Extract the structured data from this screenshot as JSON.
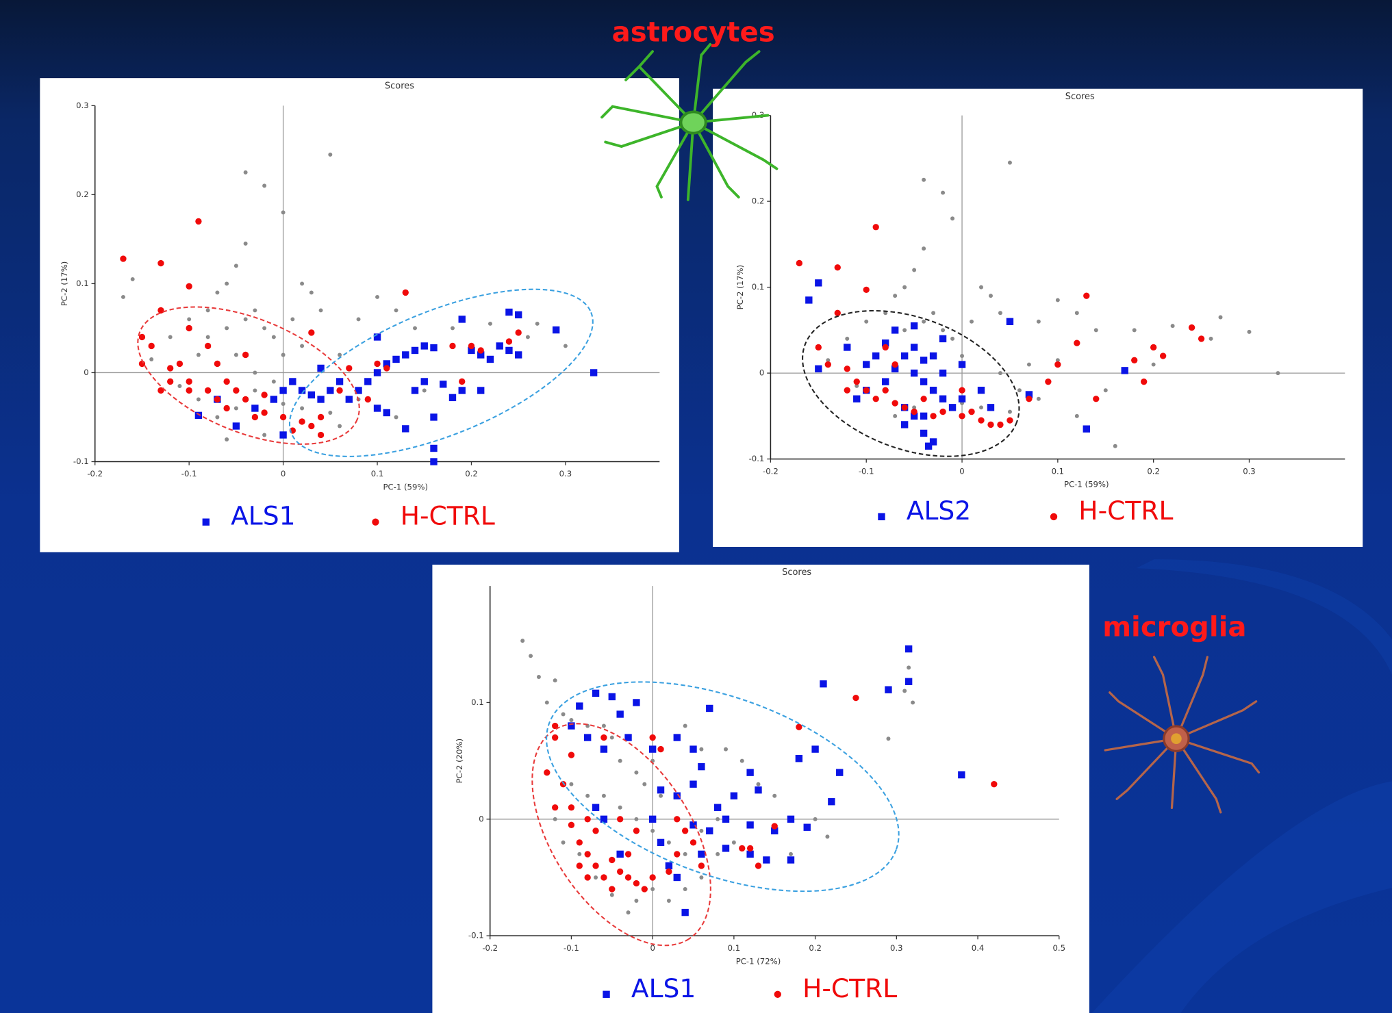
{
  "cell_labels": [
    "astrocytes",
    "microglia"
  ],
  "chart_data": [
    {
      "type": "scatter",
      "title": "Scores",
      "xlabel": "PC-1 (59%)",
      "ylabel": "PC-2 (17%)",
      "xlim": [
        -0.2,
        0.4
      ],
      "ylim": [
        -0.1,
        0.3
      ],
      "xticks": [
        -0.2,
        -0.1,
        0,
        0.1,
        0.2,
        0.3
      ],
      "yticks": [
        -0.1,
        0,
        0.1,
        0.2,
        0.3
      ],
      "series": [
        {
          "color": "#8a8a8a",
          "marker": "dot",
          "x": [
            -0.17,
            -0.16,
            -0.04,
            -0.02,
            0.0,
            0.05,
            -0.04,
            -0.05,
            -0.06,
            -0.07,
            -0.08,
            -0.1,
            -0.12,
            -0.09,
            -0.08,
            -0.06,
            -0.04,
            -0.03,
            -0.02,
            -0.01,
            0.0,
            0.02,
            0.03,
            0.01,
            0.02,
            0.04,
            0.08,
            0.1,
            0.12,
            0.14,
            0.18,
            0.22,
            0.26,
            0.27,
            0.3,
            -0.14,
            -0.11,
            -0.09,
            -0.07,
            -0.05,
            -0.03,
            -0.01,
            0.0,
            0.02,
            0.05,
            -0.06,
            -0.02,
            0.06,
            0.12,
            0.08,
            0.15,
            -0.05,
            -0.03,
            0.06
          ],
          "values": [
            0.085,
            0.105,
            0.225,
            0.21,
            0.18,
            0.245,
            0.145,
            0.12,
            0.1,
            0.09,
            0.07,
            0.06,
            0.04,
            0.02,
            0.04,
            0.05,
            0.06,
            0.07,
            0.05,
            0.04,
            0.02,
            0.1,
            0.09,
            0.06,
            0.03,
            0.07,
            0.06,
            0.085,
            0.07,
            0.05,
            0.05,
            0.055,
            0.04,
            0.055,
            0.03,
            0.015,
            -0.015,
            -0.03,
            -0.05,
            -0.04,
            -0.02,
            -0.01,
            -0.035,
            -0.04,
            -0.045,
            -0.075,
            -0.07,
            -0.06,
            -0.05,
            -0.03,
            -0.02,
            0.02,
            0.0,
            0.02
          ]
        },
        {
          "name": "ALS1",
          "color": "#0a14e6",
          "marker": "square",
          "x": [
            0.33,
            0.29,
            0.25,
            0.24,
            0.19,
            0.2,
            0.21,
            0.22,
            0.23,
            0.24,
            0.16,
            0.15,
            0.14,
            0.13,
            0.12,
            0.11,
            0.1,
            0.09,
            0.08,
            0.07,
            0.06,
            0.05,
            0.04,
            0.03,
            0.02,
            0.01,
            0.0,
            -0.01,
            0.0,
            0.16,
            0.16,
            0.13,
            0.18,
            0.17,
            0.15,
            0.14,
            0.1,
            0.11,
            -0.05,
            -0.09,
            -0.07,
            -0.03,
            0.04,
            0.1,
            0.16,
            0.19,
            0.21,
            0.25
          ],
          "values": [
            0.0,
            0.048,
            0.065,
            0.068,
            0.06,
            0.025,
            0.02,
            0.015,
            0.03,
            0.025,
            0.028,
            0.03,
            0.025,
            0.02,
            0.015,
            0.01,
            0.0,
            -0.01,
            -0.02,
            -0.03,
            -0.01,
            -0.02,
            -0.03,
            -0.025,
            -0.02,
            -0.01,
            -0.02,
            -0.03,
            -0.07,
            -0.1,
            -0.085,
            -0.063,
            -0.028,
            -0.013,
            -0.01,
            -0.02,
            -0.04,
            -0.045,
            -0.06,
            -0.048,
            -0.03,
            -0.04,
            0.005,
            0.04,
            -0.05,
            -0.02,
            -0.02,
            0.02
          ]
        },
        {
          "name": "H-CTRL",
          "color": "#f00a0a",
          "marker": "circle",
          "x": [
            -0.17,
            -0.09,
            -0.13,
            -0.1,
            -0.13,
            -0.15,
            -0.14,
            -0.15,
            -0.12,
            -0.11,
            -0.1,
            -0.1,
            -0.08,
            -0.07,
            -0.06,
            -0.05,
            -0.04,
            -0.03,
            -0.02,
            0.0,
            0.02,
            0.03,
            0.04,
            0.04,
            0.01,
            -0.08,
            -0.1,
            -0.07,
            0.03,
            0.13,
            0.25,
            0.24,
            0.21,
            0.2,
            0.18,
            0.11,
            0.1,
            0.07,
            0.06,
            0.09,
            0.19,
            -0.04,
            -0.02,
            -0.06,
            -0.12,
            -0.13
          ],
          "values": [
            0.128,
            0.17,
            0.123,
            0.097,
            0.07,
            0.04,
            0.03,
            0.01,
            0.005,
            0.01,
            -0.01,
            -0.02,
            -0.02,
            -0.03,
            -0.01,
            -0.02,
            -0.03,
            -0.05,
            -0.045,
            -0.05,
            -0.055,
            -0.06,
            -0.05,
            -0.07,
            -0.065,
            0.03,
            0.05,
            0.01,
            0.045,
            0.09,
            0.045,
            0.035,
            0.025,
            0.03,
            0.03,
            0.005,
            0.01,
            0.005,
            -0.02,
            -0.03,
            -0.01,
            0.02,
            -0.025,
            -0.04,
            -0.01,
            -0.02
          ]
        }
      ]
    },
    {
      "type": "scatter",
      "title": "Scores",
      "xlabel": "PC-1 (59%)",
      "ylabel": "PC-2 (17%)",
      "xlim": [
        -0.2,
        0.4
      ],
      "ylim": [
        -0.1,
        0.3
      ],
      "xticks": [
        -0.2,
        -0.1,
        0,
        0.1,
        0.2,
        0.3
      ],
      "yticks": [
        -0.1,
        0,
        0.1,
        0.2,
        0.3
      ],
      "series": [
        {
          "color": "#8a8a8a",
          "marker": "dot",
          "x": [
            -0.04,
            -0.02,
            -0.01,
            0.05,
            -0.04,
            -0.05,
            -0.06,
            -0.07,
            -0.08,
            -0.1,
            -0.12,
            -0.09,
            -0.06,
            -0.04,
            -0.03,
            -0.02,
            -0.01,
            0.0,
            0.02,
            0.03,
            0.01,
            0.04,
            0.08,
            0.1,
            0.12,
            0.14,
            0.18,
            0.22,
            0.26,
            0.27,
            0.3,
            0.33,
            0.16,
            -0.14,
            -0.11,
            -0.09,
            -0.07,
            -0.05,
            -0.03,
            0.0,
            0.02,
            0.05,
            0.06,
            0.12,
            0.08,
            0.15,
            0.04,
            0.07,
            0.1,
            0.2
          ],
          "values": [
            0.225,
            0.21,
            0.18,
            0.245,
            0.145,
            0.12,
            0.1,
            0.09,
            0.07,
            0.06,
            0.04,
            0.02,
            0.05,
            0.06,
            0.07,
            0.05,
            0.04,
            0.02,
            0.1,
            0.09,
            0.06,
            0.07,
            0.06,
            0.085,
            0.07,
            0.05,
            0.05,
            0.055,
            0.04,
            0.065,
            0.048,
            0.0,
            -0.085,
            0.015,
            -0.015,
            -0.03,
            -0.05,
            -0.04,
            -0.02,
            -0.035,
            -0.04,
            -0.045,
            -0.02,
            -0.05,
            -0.03,
            -0.02,
            0.0,
            0.01,
            0.015,
            0.01
          ]
        },
        {
          "name": "ALS2",
          "color": "#0a14e6",
          "marker": "square",
          "x": [
            -0.16,
            -0.15,
            -0.15,
            -0.12,
            -0.11,
            -0.1,
            -0.09,
            -0.08,
            -0.07,
            -0.06,
            -0.05,
            -0.05,
            -0.04,
            -0.04,
            -0.03,
            -0.03,
            -0.02,
            -0.02,
            -0.01,
            -0.06,
            -0.05,
            -0.04,
            -0.03,
            -0.06,
            -0.08,
            -0.1,
            -0.04,
            -0.035,
            0.0,
            0.02,
            0.03,
            0.05,
            0.07,
            0.13,
            0.17,
            -0.07,
            -0.02,
            0.0,
            -0.05
          ],
          "values": [
            0.085,
            0.105,
            0.005,
            0.03,
            -0.03,
            0.01,
            0.02,
            0.035,
            0.05,
            0.02,
            0.03,
            0.0,
            0.015,
            -0.01,
            0.02,
            -0.02,
            0.0,
            -0.03,
            -0.04,
            -0.04,
            -0.05,
            -0.05,
            -0.08,
            -0.06,
            -0.01,
            -0.02,
            -0.07,
            -0.085,
            -0.03,
            -0.02,
            -0.04,
            0.06,
            -0.025,
            -0.065,
            0.003,
            0.005,
            0.04,
            0.01,
            0.055
          ]
        },
        {
          "name": "H-CTRL",
          "color": "#f00a0a",
          "marker": "circle",
          "x": [
            -0.17,
            -0.09,
            -0.13,
            -0.1,
            -0.13,
            -0.15,
            -0.14,
            -0.12,
            -0.11,
            -0.1,
            -0.09,
            -0.08,
            -0.07,
            -0.06,
            -0.05,
            -0.04,
            -0.03,
            -0.02,
            0.0,
            0.02,
            0.03,
            0.04,
            0.05,
            0.01,
            -0.08,
            -0.07,
            0.13,
            0.25,
            0.24,
            0.21,
            0.2,
            0.18,
            0.1,
            0.12,
            0.09,
            0.07,
            0.14,
            0.19,
            -0.12,
            0.0
          ],
          "values": [
            0.128,
            0.17,
            0.123,
            0.097,
            0.07,
            0.03,
            0.01,
            0.005,
            -0.01,
            -0.02,
            -0.03,
            -0.02,
            -0.035,
            -0.04,
            -0.045,
            -0.03,
            -0.05,
            -0.045,
            -0.05,
            -0.055,
            -0.06,
            -0.06,
            -0.055,
            -0.045,
            0.03,
            0.01,
            0.09,
            0.04,
            0.053,
            0.02,
            0.03,
            0.015,
            0.01,
            0.035,
            -0.01,
            -0.03,
            -0.03,
            -0.01,
            -0.02,
            -0.02
          ]
        }
      ]
    },
    {
      "type": "scatter",
      "title": "Scores",
      "xlabel": "PC-1 (72%)",
      "ylabel": "PC-2 (20%)",
      "xlim": [
        -0.2,
        0.5
      ],
      "ylim": [
        -0.1,
        0.2
      ],
      "xticks": [
        -0.2,
        -0.1,
        0,
        0.1,
        0.2,
        0.3,
        0.4,
        0.5
      ],
      "yticks": [
        -0.1,
        0,
        0.1
      ],
      "series": [
        {
          "color": "#8a8a8a",
          "marker": "dot",
          "x": [
            -0.16,
            -0.15,
            -0.14,
            -0.12,
            -0.13,
            -0.11,
            -0.1,
            -0.08,
            -0.06,
            -0.05,
            -0.04,
            -0.02,
            0.0,
            0.04,
            0.06,
            0.09,
            0.11,
            0.13,
            0.15,
            0.2,
            0.215,
            0.17,
            0.1,
            0.08,
            0.06,
            0.04,
            0.02,
            0.0,
            -0.02,
            -0.03,
            -0.05,
            -0.07,
            -0.09,
            -0.11,
            -0.12,
            -0.1,
            -0.08,
            -0.06,
            -0.04,
            -0.02,
            0.0,
            0.02,
            0.04,
            0.06,
            0.08,
            0.29,
            0.31,
            0.315,
            0.32,
            0.01,
            -0.01
          ],
          "values": [
            0.153,
            0.14,
            0.122,
            0.119,
            0.1,
            0.09,
            0.085,
            0.08,
            0.08,
            0.07,
            0.05,
            0.04,
            0.05,
            0.08,
            0.06,
            0.06,
            0.05,
            0.03,
            0.02,
            0.0,
            -0.015,
            -0.03,
            -0.02,
            -0.03,
            -0.05,
            -0.06,
            -0.07,
            -0.06,
            -0.07,
            -0.08,
            -0.065,
            -0.05,
            -0.03,
            -0.02,
            0.0,
            0.03,
            0.02,
            0.02,
            0.01,
            0.0,
            -0.01,
            -0.02,
            -0.03,
            -0.01,
            0.0,
            0.069,
            0.11,
            0.13,
            0.1,
            0.02,
            0.03
          ]
        },
        {
          "name": "ALS1",
          "color": "#0a14e6",
          "marker": "square",
          "x": [
            -0.09,
            -0.07,
            -0.05,
            -0.04,
            -0.02,
            -0.1,
            -0.08,
            -0.06,
            -0.03,
            0.0,
            0.03,
            0.07,
            0.05,
            0.06,
            0.01,
            0.03,
            0.05,
            0.08,
            0.1,
            0.12,
            0.13,
            0.09,
            0.12,
            0.15,
            0.17,
            0.18,
            0.2,
            0.23,
            0.22,
            0.19,
            0.17,
            0.14,
            0.12,
            0.09,
            0.06,
            0.03,
            0.04,
            0.02,
            -0.04,
            -0.06,
            -0.07,
            0.0,
            0.21,
            0.29,
            0.315,
            0.315,
            0.38,
            0.07,
            0.05,
            0.01
          ],
          "values": [
            0.097,
            0.108,
            0.105,
            0.09,
            0.1,
            0.08,
            0.07,
            0.06,
            0.07,
            0.06,
            0.07,
            0.095,
            0.06,
            0.045,
            0.025,
            0.02,
            0.03,
            0.01,
            0.02,
            0.04,
            0.025,
            0.0,
            -0.005,
            -0.01,
            0.0,
            0.052,
            0.06,
            0.04,
            0.015,
            -0.007,
            -0.035,
            -0.035,
            -0.03,
            -0.025,
            -0.03,
            -0.05,
            -0.08,
            -0.04,
            -0.03,
            0.0,
            0.01,
            0.0,
            0.116,
            0.111,
            0.118,
            0.146,
            0.038,
            -0.01,
            -0.005,
            -0.02
          ]
        },
        {
          "name": "H-CTRL",
          "color": "#f00a0a",
          "marker": "circle",
          "x": [
            0.42,
            0.25,
            0.18,
            -0.12,
            -0.13,
            -0.12,
            -0.1,
            -0.09,
            -0.08,
            -0.07,
            -0.06,
            -0.05,
            -0.04,
            -0.03,
            -0.02,
            -0.01,
            0.0,
            0.02,
            0.05,
            0.06,
            0.0,
            -0.06,
            -0.11,
            -0.1,
            -0.08,
            -0.07,
            -0.09,
            -0.08,
            -0.05,
            -0.03,
            -0.02,
            0.03,
            0.04,
            0.11,
            0.12,
            0.15,
            0.13,
            -0.1,
            -0.12,
            0.01,
            -0.04,
            0.03
          ],
          "values": [
            0.03,
            0.104,
            0.079,
            0.07,
            0.04,
            0.01,
            -0.005,
            -0.02,
            -0.03,
            -0.04,
            -0.05,
            -0.035,
            -0.045,
            -0.05,
            -0.055,
            -0.06,
            -0.05,
            -0.045,
            -0.02,
            -0.04,
            0.07,
            0.07,
            0.03,
            0.01,
            0.0,
            -0.01,
            -0.04,
            -0.05,
            -0.06,
            -0.03,
            -0.01,
            0.0,
            -0.01,
            -0.025,
            -0.025,
            -0.006,
            -0.04,
            0.055,
            0.08,
            0.06,
            0.0,
            -0.03
          ]
        }
      ]
    }
  ]
}
